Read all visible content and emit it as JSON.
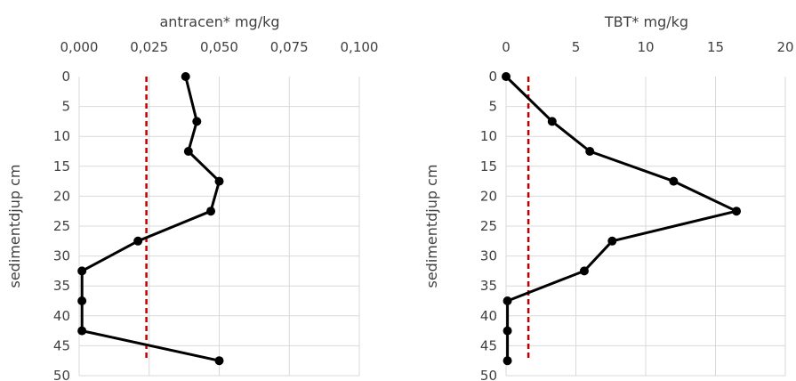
{
  "chart_data": [
    {
      "type": "line",
      "title": "",
      "xlabel": "antracen* mg/kg",
      "ylabel": "sedimentdjup cm",
      "x_ticks": [
        "0,000",
        "0,025",
        "0,050",
        "0,075",
        "0,100"
      ],
      "y_ticks": [
        "0",
        "5",
        "10",
        "15",
        "20",
        "25",
        "30",
        "35",
        "40",
        "45",
        "50"
      ],
      "xlim": [
        0,
        0.1
      ],
      "ylim": [
        0,
        50
      ],
      "x_axis_position": "top",
      "y_reversed": true,
      "grid": true,
      "series": [
        {
          "color": "#000000",
          "points": [
            {
              "x": 0.038,
              "y": 0
            },
            {
              "x": 0.042,
              "y": 7.5
            },
            {
              "x": 0.039,
              "y": 12.5
            },
            {
              "x": 0.05,
              "y": 17.5
            },
            {
              "x": 0.047,
              "y": 22.5
            },
            {
              "x": 0.021,
              "y": 27.5
            },
            {
              "x": 0.001,
              "y": 32.5
            },
            {
              "x": 0.001,
              "y": 37.5
            },
            {
              "x": 0.001,
              "y": 42.5
            },
            {
              "x": 0.05,
              "y": 47.5
            }
          ]
        }
      ],
      "threshold": {
        "x": 0.024,
        "color": "#c00000",
        "style": "dashed"
      }
    },
    {
      "type": "line",
      "title": "",
      "xlabel": "TBT* mg/kg",
      "ylabel": "sedimentdjup cm",
      "x_ticks": [
        "0",
        "5",
        "10",
        "15",
        "20"
      ],
      "y_ticks": [
        "0",
        "5",
        "10",
        "15",
        "20",
        "25",
        "30",
        "35",
        "40",
        "45",
        "50"
      ],
      "xlim": [
        0,
        20
      ],
      "ylim": [
        0,
        50
      ],
      "x_axis_position": "top",
      "y_reversed": true,
      "grid": true,
      "series": [
        {
          "color": "#000000",
          "points": [
            {
              "x": 0,
              "y": 0
            },
            {
              "x": 3.3,
              "y": 7.5
            },
            {
              "x": 6,
              "y": 12.5
            },
            {
              "x": 12,
              "y": 17.5
            },
            {
              "x": 16.5,
              "y": 22.5
            },
            {
              "x": 7.6,
              "y": 27.5
            },
            {
              "x": 5.6,
              "y": 32.5
            },
            {
              "x": 0.1,
              "y": 37.5
            },
            {
              "x": 0.1,
              "y": 42.5
            },
            {
              "x": 0.1,
              "y": 47.5
            }
          ]
        }
      ],
      "threshold": {
        "x": 1.6,
        "color": "#c00000",
        "style": "dashed"
      }
    }
  ]
}
